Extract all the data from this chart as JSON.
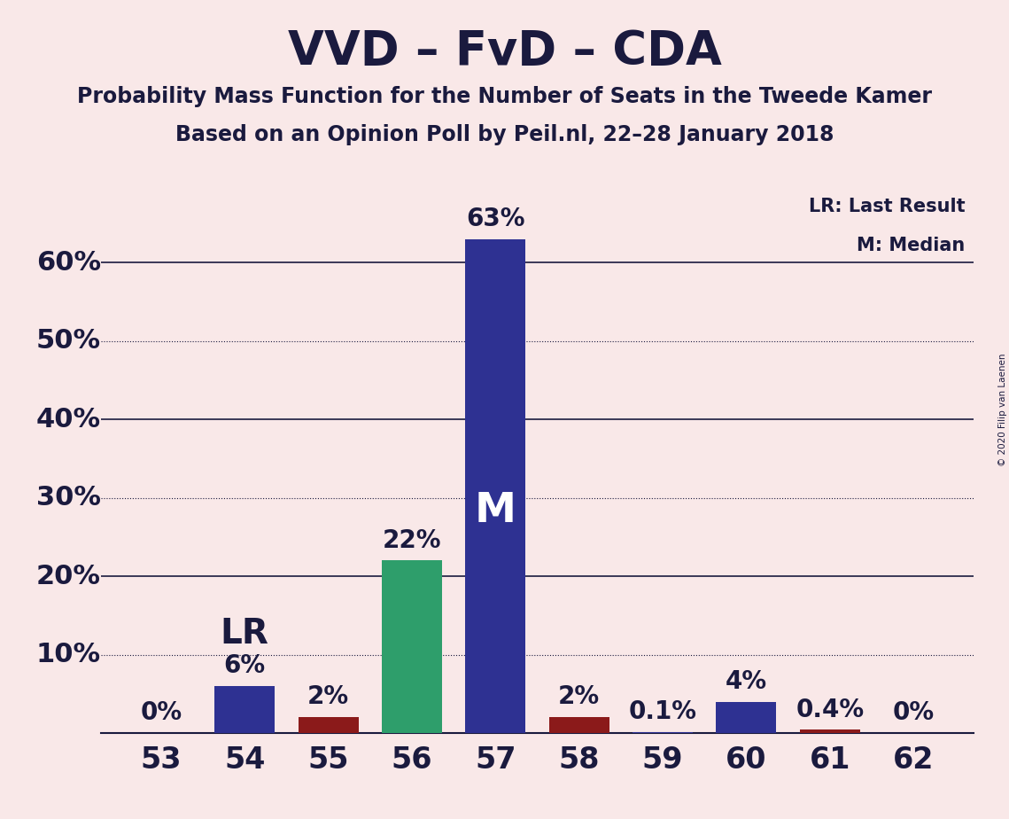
{
  "title": "VVD – FvD – CDA",
  "subtitle1": "Probability Mass Function for the Number of Seats in the Tweede Kamer",
  "subtitle2": "Based on an Opinion Poll by Peil.nl, 22–28 January 2018",
  "copyright": "© 2020 Filip van Laenen",
  "background_color": "#f9e8e8",
  "categories": [
    53,
    54,
    55,
    56,
    57,
    58,
    59,
    60,
    61,
    62
  ],
  "values": [
    0.0,
    6.0,
    2.0,
    22.0,
    63.0,
    2.0,
    0.1,
    4.0,
    0.4,
    0.0
  ],
  "labels": [
    "0%",
    "6%",
    "2%",
    "22%",
    "63%",
    "2%",
    "0.1%",
    "4%",
    "0.4%",
    "0%"
  ],
  "bar_colors": [
    "#2e3192",
    "#2e3192",
    "#8b1a1a",
    "#2e9e6b",
    "#2e3192",
    "#8b1a1a",
    "#2e3192",
    "#2e3192",
    "#8b1a1a",
    "#2e3192"
  ],
  "median_bar": 57,
  "lr_bar": 54,
  "lr_label": "LR",
  "median_label": "M",
  "title_fontsize": 38,
  "subtitle_fontsize": 17,
  "axis_label_fontsize": 22,
  "bar_label_fontsize": 20,
  "special_label_fontsize": 28,
  "median_label_fontsize": 34,
  "ylim": [
    0,
    70
  ],
  "solid_lines": [
    20,
    40,
    60
  ],
  "dotted_lines": [
    10,
    30,
    50
  ],
  "text_color": "#1a1a3e",
  "ytick_map": {
    "10": "10%",
    "20": "20%",
    "30": "30%",
    "40": "40%",
    "50": "50%",
    "60": "60%"
  }
}
